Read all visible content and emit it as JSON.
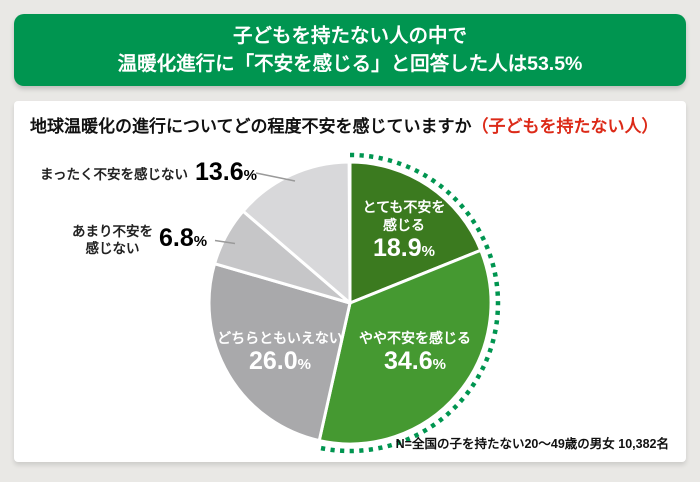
{
  "header": {
    "line1": "子どもを持たない人の中で",
    "line2": "温暖化進行に「不安を感じる」と回答した人は53.5%",
    "bg_color": "#009550",
    "text_color": "#ffffff"
  },
  "chart": {
    "title_main": "地球温暖化の進行についてどの程度不安を感じていますか",
    "title_highlight": "（子どもを持たない人）",
    "title_highlight_color": "#dc2a18",
    "note": "N=全国の子を持たない20～49歳の男女 10,382名"
  },
  "chart_data": {
    "type": "pie",
    "title": "地球温暖化の進行についてどの程度不安を感じていますか（子どもを持たない人）",
    "start_angle_deg": -90,
    "direction": "clockwise",
    "percent_sign": "%",
    "slices": [
      {
        "label": "とても不安を感じる",
        "lines": [
          "とても不安を",
          "感じる"
        ],
        "value": 18.9,
        "display": "18.9",
        "color": "#3b7a1f",
        "label_position": "inside"
      },
      {
        "label": "やや不安を感じる",
        "lines": [
          "やや不安を感じる"
        ],
        "value": 34.6,
        "display": "34.6",
        "color": "#459931",
        "label_position": "inside"
      },
      {
        "label": "どちらともいえない",
        "lines": [
          "どちらともいえない"
        ],
        "value": 26.0,
        "display": "26.0",
        "color": "#a9a9ab",
        "label_position": "inside"
      },
      {
        "label": "あまり不安を感じない",
        "lines": [
          "あまり不安を",
          "感じない"
        ],
        "value": 6.8,
        "display": "6.8",
        "color": "#c6c6c8",
        "label_position": "outside"
      },
      {
        "label": "まったく不安を感じない",
        "lines": [
          "まったく不安を感じない"
        ],
        "value": 13.6,
        "display": "13.6",
        "color": "#d8d8da",
        "label_position": "outside"
      }
    ],
    "highlight_arc": {
      "span_pct": 53.5,
      "color": "#009550",
      "style": "dotted"
    }
  }
}
